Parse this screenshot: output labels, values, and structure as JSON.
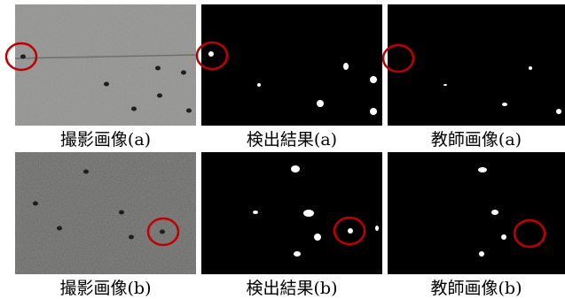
{
  "rows": [
    [
      "撮影画像(a)",
      "検出結果(a)",
      "教師画像(a)"
    ],
    [
      "撮影画像(b)",
      "検出結果(b)",
      "教師画像(b)"
    ]
  ]
}
